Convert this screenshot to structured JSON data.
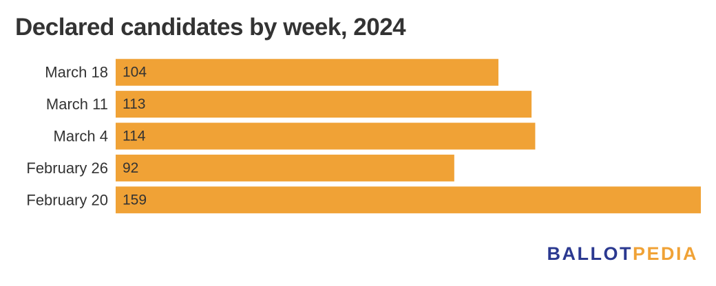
{
  "chart_data": {
    "type": "bar",
    "orientation": "horizontal",
    "title": "Declared candidates by week, 2024",
    "categories": [
      "March 18",
      "March 11",
      "March 4",
      "February 26",
      "February 20"
    ],
    "values": [
      104,
      113,
      114,
      92,
      159
    ],
    "xlabel": "",
    "ylabel": "",
    "xlim": [
      0,
      159
    ],
    "grid": false,
    "data_labels": true,
    "bar_color": "#f0a236"
  },
  "branding": {
    "logo_part1": "BALLOT",
    "logo_part2": "PEDIA",
    "logo_color_1": "#2b3990",
    "logo_color_2": "#f0a236"
  }
}
